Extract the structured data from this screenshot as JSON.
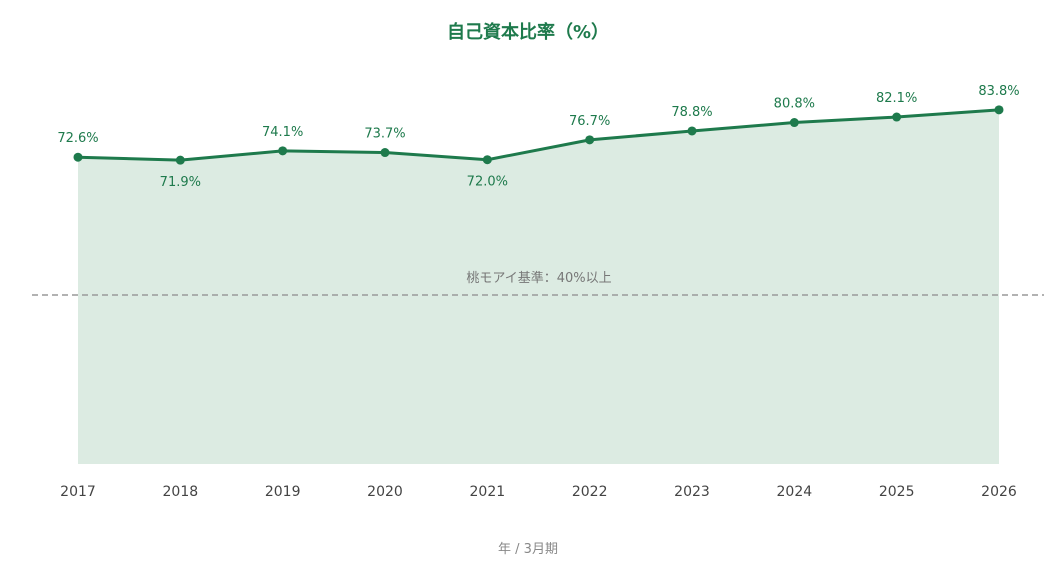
{
  "chart_data": {
    "type": "area",
    "title": "自己資本比率（%）",
    "xlabel": "年 / 3月期",
    "ylabel": "",
    "x": [
      "2017",
      "2018",
      "2019",
      "2020",
      "2021",
      "2022",
      "2023",
      "2024",
      "2025",
      "2026"
    ],
    "series": [
      {
        "values": [
          72.6,
          71.9,
          74.1,
          73.7,
          72.0,
          76.7,
          78.8,
          80.8,
          82.1,
          83.8
        ],
        "labels": [
          "72.6%",
          "71.9%",
          "74.1%",
          "73.7%",
          "72.0%",
          "76.7%",
          "78.8%",
          "80.8%",
          "82.1%",
          "83.8%"
        ],
        "color": "#1e7a4c",
        "fill_color": "#dcebe2"
      }
    ],
    "ylim": [
      0,
      90
    ],
    "grid": false,
    "reference_line": {
      "value": 40,
      "label": "桃モアイ基準：40%以上",
      "color": "#999999"
    }
  }
}
